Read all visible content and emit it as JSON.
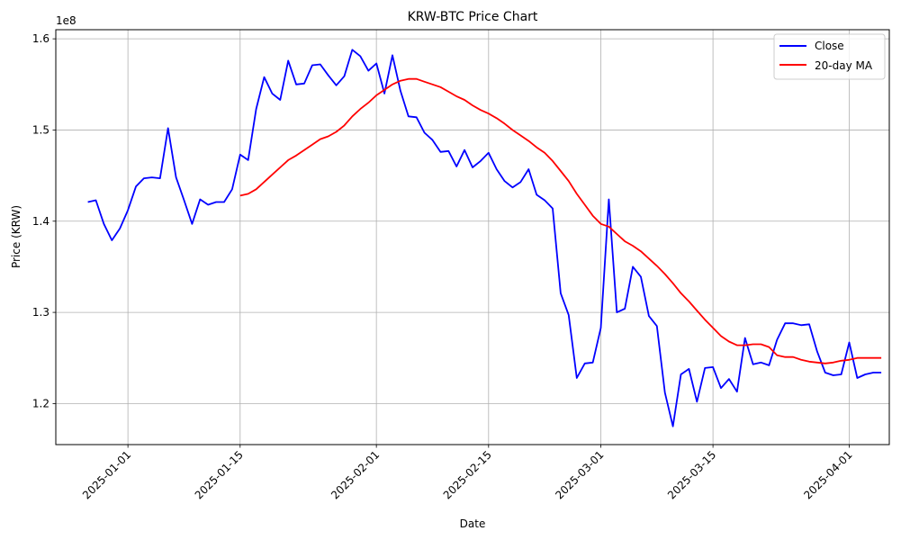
{
  "chart_data": {
    "type": "line",
    "title": "KRW-BTC Price Chart",
    "xlabel": "Date",
    "ylabel": "Price (KRW)",
    "y_scale_label": "1e8",
    "ylim": [
      1.155,
      1.61
    ],
    "xlim": [
      "2024-12-23",
      "2025-04-06"
    ],
    "grid": true,
    "legend_position": "top-right",
    "x_tick_labels": [
      "2025-01-01",
      "2025-01-15",
      "2025-02-01",
      "2025-02-15",
      "2025-03-01",
      "2025-03-15",
      "2025-04-01"
    ],
    "y_ticks": [
      1.2,
      1.3,
      1.4,
      1.5,
      1.6
    ],
    "y_tick_labels": [
      "1.2",
      "1.3",
      "1.4",
      "1.5",
      "1.6"
    ],
    "colors": {
      "close": "#0000ff",
      "ma": "#ff0000"
    },
    "series": [
      {
        "name": "Close",
        "x_start": "2024-12-27",
        "values": [
          1.421,
          1.423,
          1.397,
          1.379,
          1.392,
          1.412,
          1.438,
          1.447,
          1.448,
          1.447,
          1.502,
          1.448,
          1.423,
          1.397,
          1.424,
          1.418,
          1.421,
          1.421,
          1.435,
          1.473,
          1.467,
          1.523,
          1.558,
          1.54,
          1.533,
          1.576,
          1.55,
          1.551,
          1.571,
          1.572,
          1.56,
          1.549,
          1.559,
          1.588,
          1.581,
          1.565,
          1.573,
          1.54,
          1.582,
          1.543,
          1.515,
          1.514,
          1.497,
          1.489,
          1.476,
          1.477,
          1.46,
          1.478,
          1.459,
          1.466,
          1.475,
          1.457,
          1.444,
          1.437,
          1.443,
          1.457,
          1.429,
          1.423,
          1.414,
          1.321,
          1.297,
          1.228,
          1.244,
          1.245,
          1.283,
          1.424,
          1.3,
          1.304,
          1.35,
          1.339,
          1.296,
          1.285,
          1.212,
          1.175,
          1.232,
          1.238,
          1.202,
          1.239,
          1.24,
          1.217,
          1.227,
          1.213,
          1.272,
          1.243,
          1.245,
          1.242,
          1.27,
          1.288,
          1.288,
          1.286,
          1.287,
          1.257,
          1.234,
          1.231,
          1.232,
          1.267,
          1.228,
          1.232,
          1.234,
          1.234
        ]
      },
      {
        "name": "20-day MA",
        "x_start": "2025-01-15",
        "values": [
          1.428,
          1.43,
          1.435,
          1.443,
          1.451,
          1.459,
          1.467,
          1.472,
          1.478,
          1.484,
          1.49,
          1.493,
          1.498,
          1.505,
          1.515,
          1.523,
          1.53,
          1.538,
          1.544,
          1.55,
          1.554,
          1.556,
          1.556,
          1.553,
          1.55,
          1.547,
          1.542,
          1.537,
          1.533,
          1.527,
          1.522,
          1.518,
          1.513,
          1.507,
          1.5,
          1.494,
          1.488,
          1.481,
          1.475,
          1.466,
          1.455,
          1.444,
          1.43,
          1.418,
          1.406,
          1.397,
          1.394,
          1.386,
          1.378,
          1.373,
          1.367,
          1.359,
          1.351,
          1.342,
          1.332,
          1.321,
          1.312,
          1.302,
          1.292,
          1.283,
          1.274,
          1.268,
          1.264,
          1.264,
          1.265,
          1.265,
          1.262,
          1.253,
          1.251,
          1.251,
          1.248,
          1.246,
          1.245,
          1.244,
          1.245,
          1.247,
          1.248,
          1.25,
          1.25,
          1.25,
          1.25
        ]
      }
    ]
  }
}
